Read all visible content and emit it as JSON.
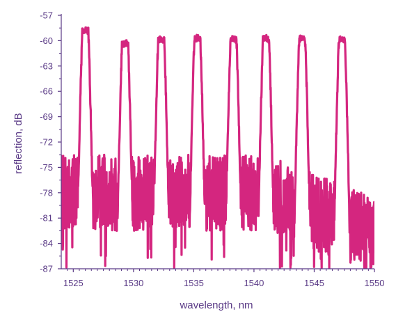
{
  "chart_data": {
    "type": "line",
    "xlabel": "wavelength, nm",
    "ylabel": "reflection, dB",
    "xlim": [
      1524,
      1550
    ],
    "ylim": [
      -87,
      -57
    ],
    "x_ticks": [
      1525,
      1530,
      1535,
      1540,
      1545,
      1550
    ],
    "y_ticks": [
      -57,
      -60,
      -63,
      -66,
      -69,
      -72,
      -75,
      -78,
      -81,
      -84,
      -87
    ],
    "grid": false,
    "colors": {
      "axis": "#5a3a86",
      "line": "#d4267f"
    },
    "peaks": [
      {
        "center": 1526.0,
        "peak_db": -58.8
      },
      {
        "center": 1529.3,
        "peak_db": -60.3
      },
      {
        "center": 1532.3,
        "peak_db": -59.8
      },
      {
        "center": 1535.3,
        "peak_db": -59.7
      },
      {
        "center": 1538.3,
        "peak_db": -59.8
      },
      {
        "center": 1541.0,
        "peak_db": -59.7
      },
      {
        "center": 1544.0,
        "peak_db": -59.7
      },
      {
        "center": 1547.3,
        "peak_db": -59.8
      }
    ],
    "peak_half_width_nm": 0.45,
    "noise_floor_db": [
      -82,
      -74
    ],
    "noise_floor_trend": "floor drops toward -87 dB beyond 1542 nm"
  }
}
